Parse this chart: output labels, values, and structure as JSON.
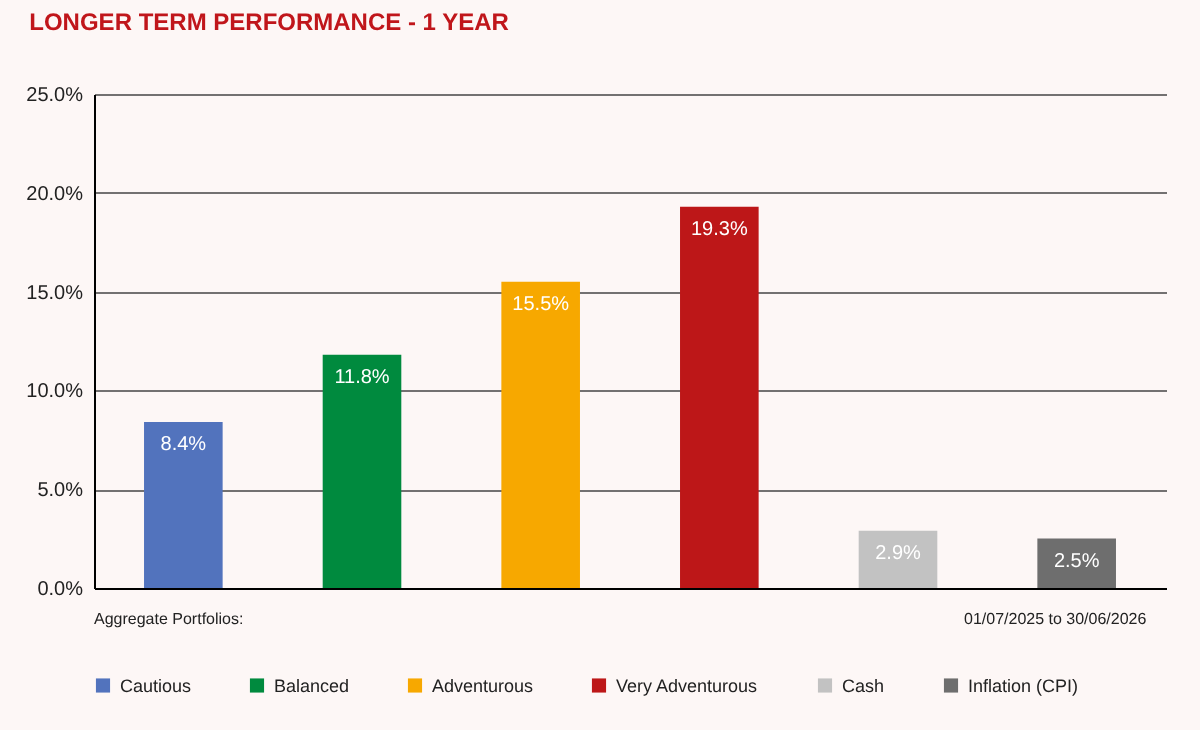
{
  "chart_data": {
    "type": "bar",
    "title": "LONGER TERM PERFORMANCE - 1 YEAR",
    "categories": [
      null,
      null,
      null,
      null,
      null,
      null
    ],
    "series": [
      {
        "name": "Cautious",
        "color": "#5273bd",
        "values": [
          8.4,
          null,
          null,
          null,
          null,
          null
        ],
        "value_labels": [
          "8.4%",
          null,
          null,
          null,
          null,
          null
        ]
      },
      {
        "name": "Balanced",
        "color": "#008a3e",
        "values": [
          null,
          11.8,
          null,
          null,
          null,
          null
        ],
        "value_labels": [
          null,
          "11.8%",
          null,
          null,
          null,
          null
        ]
      },
      {
        "name": "Adventurous",
        "color": "#f7a800",
        "values": [
          null,
          null,
          15.5,
          null,
          null,
          null
        ],
        "value_labels": [
          null,
          null,
          "15.5%",
          null,
          null,
          null
        ]
      },
      {
        "name": "Very Adventurous",
        "color": "#bd1718",
        "values": [
          null,
          null,
          null,
          19.3,
          null,
          null
        ],
        "value_labels": [
          null,
          null,
          null,
          "19.3%",
          null,
          null
        ]
      },
      {
        "name": "Cash",
        "color": "#c2c2c2",
        "values": [
          null,
          null,
          null,
          null,
          2.9,
          null
        ],
        "value_labels": [
          null,
          null,
          null,
          null,
          "2.9%",
          null
        ]
      },
      {
        "name": "Inflation (CPI)",
        "color": "#6e6e6e",
        "values": [
          null,
          null,
          null,
          null,
          null,
          2.5
        ],
        "value_labels": [
          null,
          null,
          null,
          null,
          null,
          "2.5%"
        ]
      }
    ],
    "ylim": [
      0,
      25
    ],
    "yticks": [
      {
        "value": 0,
        "label": "0.0%"
      },
      {
        "value": 5,
        "label": "5.0%"
      },
      {
        "value": 10,
        "label": "10.0%"
      },
      {
        "value": 15,
        "label": "15.0%"
      },
      {
        "value": 20,
        "label": "20.0%"
      },
      {
        "value": 25,
        "label": "25.0%"
      }
    ],
    "grid": "y",
    "legend": "bottom",
    "tick_labels": "y",
    "annotations": [
      "Aggregate Portfolios:",
      "01/07/2025 to 30/06/2026"
    ]
  }
}
